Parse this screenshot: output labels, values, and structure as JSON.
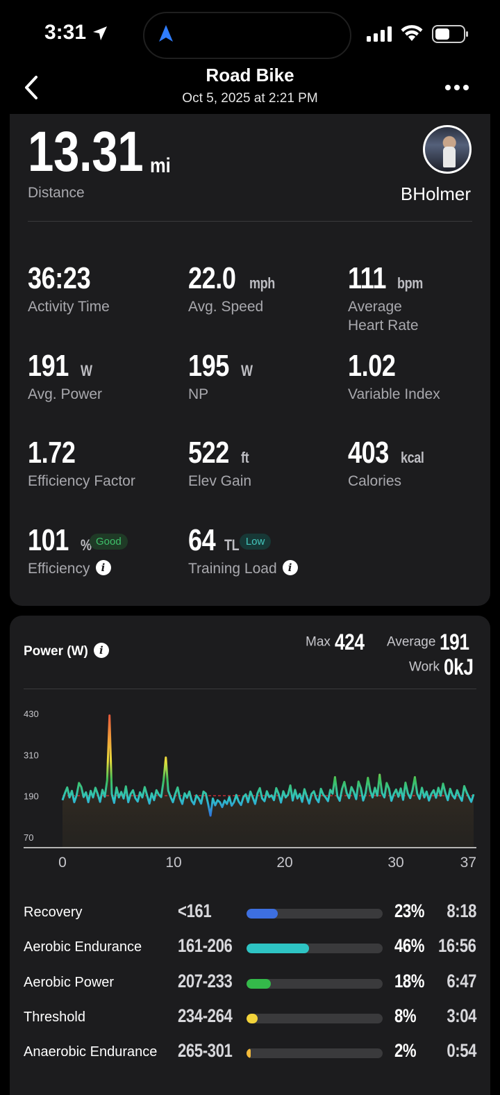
{
  "status": {
    "time": "3:31"
  },
  "header": {
    "title": "Road Bike",
    "subtitle": "Oct 5, 2025 at 2:21 PM"
  },
  "summary": {
    "distance_value": "13.31",
    "distance_unit": "mi",
    "distance_label": "Distance",
    "username": "BHolmer"
  },
  "stats": [
    {
      "value": "36:23",
      "unit": "",
      "label": "Activity Time"
    },
    {
      "value": "22.0",
      "unit": "mph",
      "label": "Avg. Speed"
    },
    {
      "value": "111",
      "unit": "bpm",
      "label": "Average",
      "label2": "Heart Rate"
    },
    {
      "value": "191",
      "unit": "W",
      "label": "Avg. Power"
    },
    {
      "value": "195",
      "unit": "W",
      "label": "NP"
    },
    {
      "value": "1.02",
      "unit": "",
      "label": "Variable Index"
    },
    {
      "value": "1.72",
      "unit": "",
      "label": "Efficiency Factor"
    },
    {
      "value": "522",
      "unit": "ft",
      "label": "Elev Gain"
    },
    {
      "value": "403",
      "unit": "kcal",
      "label": "Calories"
    },
    {
      "value": "101",
      "unit": "%",
      "label": "Efficiency",
      "badge": "Good"
    },
    {
      "value": "64",
      "unit": "TL",
      "label": "Training Load",
      "badge": "Low"
    }
  ],
  "power": {
    "title": "Power (W)",
    "max_label": "Max",
    "max_value": "424",
    "avg_label": "Average",
    "avg_value": "191",
    "work_label": "Work",
    "work_value": "0kJ"
  },
  "chart_data": {
    "type": "line",
    "title": "Power (W)",
    "x_ticks": [
      "0",
      "10",
      "20",
      "30",
      "37"
    ],
    "y_ticks": [
      "430",
      "310",
      "190",
      "70"
    ],
    "xlim": [
      0,
      37
    ],
    "ylim": [
      40,
      460
    ],
    "average": 191,
    "series": [
      {
        "values": [
          178,
          198,
          215,
          186,
          205,
          172,
          192,
          228,
          216,
          187,
          201,
          172,
          205,
          186,
          214,
          196,
          173,
          208,
          188,
          236,
          424,
          196,
          170,
          215,
          186,
          202,
          183,
          218,
          172,
          196,
          207,
          184,
          174,
          201,
          186,
          216,
          192,
          168,
          198,
          178,
          207,
          194,
          187,
          235,
          302,
          206,
          188,
          172,
          196,
          215,
          184,
          167,
          198,
          185,
          203,
          176,
          166,
          192,
          183,
          168,
          203,
          197,
          167,
          133,
          183,
          163,
          178,
          172,
          158,
          177,
          167,
          187,
          162,
          172,
          193,
          174,
          164,
          187,
          195,
          172,
          203,
          186,
          167,
          198,
          213,
          183,
          175,
          204,
          187,
          192,
          178,
          213,
          196,
          171,
          204,
          186,
          194,
          221,
          177,
          208,
          183,
          196,
          173,
          210,
          188,
          168,
          196,
          204,
          183,
          172,
          211,
          194,
          186,
          175,
          208,
          197,
          245,
          190,
          176,
          211,
          231,
          199,
          184,
          216,
          202,
          181,
          232,
          213,
          177,
          198,
          243,
          205,
          186,
          214,
          191,
          252,
          199,
          186,
          228,
          211,
          176,
          196,
          209,
          188,
          212,
          179,
          229,
          198,
          184,
          207,
          245,
          197,
          182,
          214,
          186,
          203,
          177,
          196,
          207,
          185,
          214,
          191,
          226,
          199,
          178,
          211,
          192,
          183,
          207,
          189,
          176,
          219,
          201,
          187,
          173,
          195
        ]
      }
    ]
  },
  "zones": [
    {
      "name": "Recovery",
      "range": "<161",
      "pct": "23%",
      "pct_value": 23,
      "time": "8:18",
      "color": "#3d6fe0"
    },
    {
      "name": "Aerobic Endurance",
      "range": "161-206",
      "pct": "46%",
      "pct_value": 46,
      "time": "16:56",
      "color": "#2ec4c4"
    },
    {
      "name": "Aerobic Power",
      "range": "207-233",
      "pct": "18%",
      "pct_value": 18,
      "time": "6:47",
      "color": "#34b94a"
    },
    {
      "name": "Threshold",
      "range": "234-264",
      "pct": "8%",
      "pct_value": 8,
      "time": "3:04",
      "color": "#f2d33a"
    },
    {
      "name": "Anaerobic Endurance",
      "range": "265-301",
      "pct": "2%",
      "pct_value": 2,
      "time": "0:54",
      "color": "#f2b93a"
    }
  ],
  "icons": {
    "back": "chevron-left-icon",
    "more": "ellipsis-icon",
    "info": "info-icon",
    "location": "location-arrow-icon"
  }
}
